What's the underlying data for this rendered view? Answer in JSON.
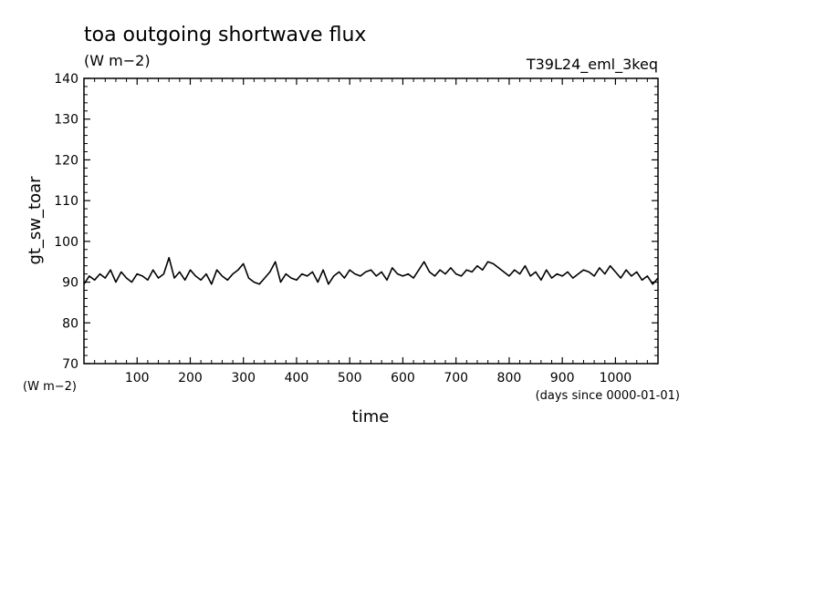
{
  "chart_data": {
    "type": "line",
    "title": "toa outgoing shortwave flux",
    "units_label": "(W m−2)",
    "run_label": "T39L24_eml_3keq",
    "ylabel": "gt_sw_toar",
    "y_unit_label": "(W m−2)",
    "xlabel": "time",
    "x_unit_label": "(days since 0000-01-01)",
    "xlim": [
      0,
      1080
    ],
    "ylim": [
      70,
      140
    ],
    "x_ticks": [
      100,
      200,
      300,
      400,
      500,
      600,
      700,
      800,
      900,
      1000
    ],
    "y_ticks": [
      70,
      80,
      90,
      100,
      110,
      120,
      130,
      140
    ],
    "grid": false,
    "series": [
      {
        "color": "#000000",
        "x": [
          0,
          10,
          20,
          30,
          40,
          50,
          60,
          70,
          80,
          90,
          100,
          110,
          120,
          130,
          140,
          150,
          160,
          170,
          180,
          190,
          200,
          210,
          220,
          230,
          240,
          250,
          260,
          270,
          280,
          290,
          300,
          310,
          320,
          330,
          340,
          350,
          360,
          370,
          380,
          390,
          400,
          410,
          420,
          430,
          440,
          450,
          460,
          470,
          480,
          490,
          500,
          510,
          520,
          530,
          540,
          550,
          560,
          570,
          580,
          590,
          600,
          610,
          620,
          630,
          640,
          650,
          660,
          670,
          680,
          690,
          700,
          710,
          720,
          730,
          740,
          750,
          760,
          770,
          780,
          790,
          800,
          810,
          820,
          830,
          840,
          850,
          860,
          870,
          880,
          890,
          900,
          910,
          920,
          930,
          940,
          950,
          960,
          970,
          980,
          990,
          1000,
          1010,
          1020,
          1030,
          1040,
          1050,
          1060,
          1070,
          1080
        ],
        "y": [
          89.5,
          91.5,
          90.5,
          92.0,
          91.0,
          93.0,
          90.0,
          92.5,
          91.0,
          90.0,
          92.0,
          91.5,
          90.5,
          93.0,
          91.0,
          92.0,
          96.0,
          91.0,
          92.5,
          90.5,
          93.0,
          91.5,
          90.5,
          92.0,
          89.5,
          93.0,
          91.5,
          90.5,
          92.0,
          93.0,
          94.5,
          91.0,
          90.0,
          89.5,
          91.0,
          92.5,
          95.0,
          90.0,
          92.0,
          91.0,
          90.5,
          92.0,
          91.5,
          92.5,
          90.0,
          93.0,
          89.5,
          91.5,
          92.5,
          91.0,
          93.0,
          92.0,
          91.5,
          92.5,
          93.0,
          91.5,
          92.5,
          90.5,
          93.5,
          92.0,
          91.5,
          92.0,
          91.0,
          93.0,
          95.0,
          92.5,
          91.5,
          93.0,
          92.0,
          93.5,
          92.0,
          91.5,
          93.0,
          92.5,
          94.0,
          93.0,
          95.0,
          94.5,
          93.5,
          92.5,
          91.5,
          93.0,
          92.0,
          94.0,
          91.5,
          92.5,
          90.5,
          93.0,
          91.0,
          92.0,
          91.5,
          92.5,
          91.0,
          92.0,
          93.0,
          92.5,
          91.5,
          93.5,
          92.0,
          94.0,
          92.5,
          91.0,
          93.0,
          91.5,
          92.5,
          90.5,
          91.5,
          89.5,
          91.0
        ]
      }
    ]
  }
}
